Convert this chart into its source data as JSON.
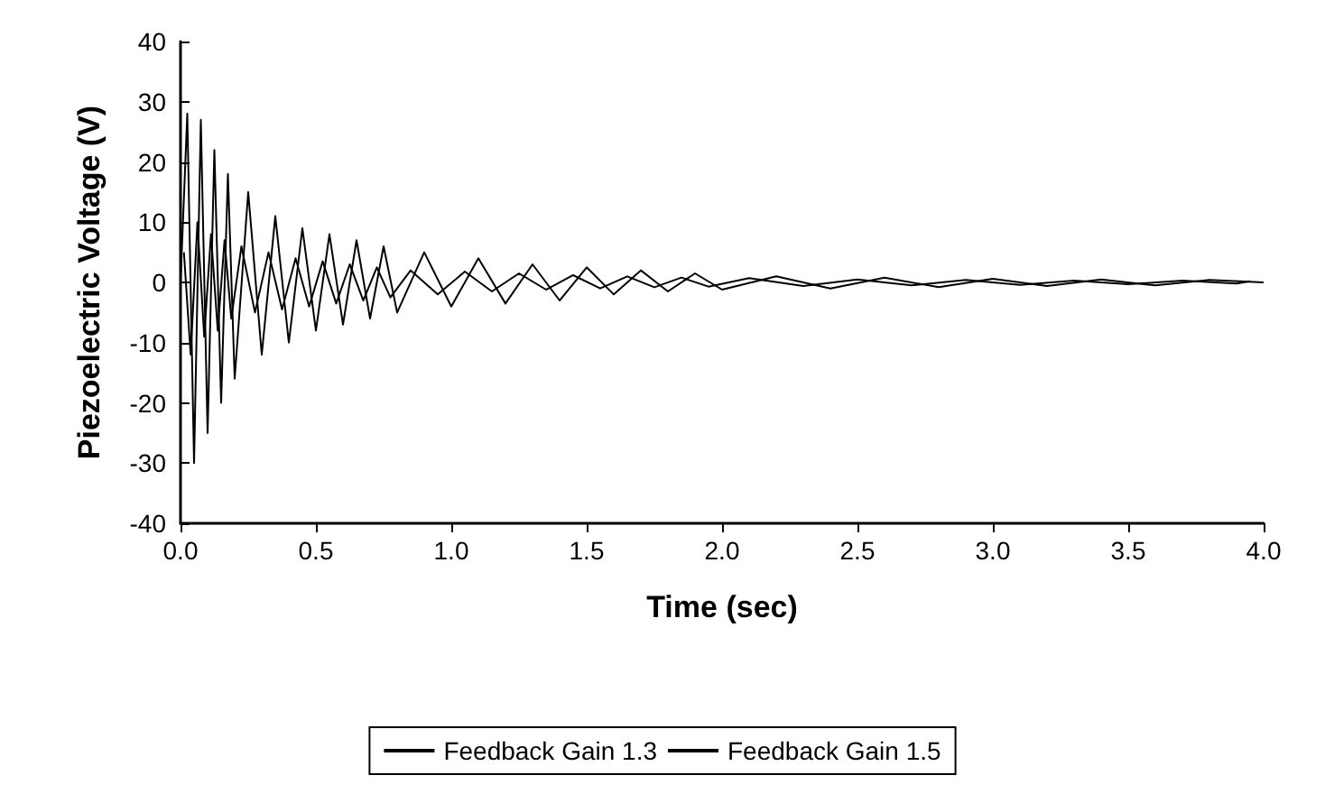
{
  "chart_data": {
    "type": "line",
    "xlabel": "Time (sec)",
    "ylabel": "Piezoelectric Voltage (V)",
    "xlim": [
      0,
      4
    ],
    "xticks": [
      {
        "value": 0,
        "label": "0.0"
      },
      {
        "value": 0.5,
        "label": "0.5"
      },
      {
        "value": 1,
        "label": "1.0"
      },
      {
        "value": 1.5,
        "label": "1.5"
      },
      {
        "value": 2,
        "label": "2.0"
      },
      {
        "value": 2.5,
        "label": "2.5"
      },
      {
        "value": 3,
        "label": "3.0"
      },
      {
        "value": 3.5,
        "label": "3.5"
      },
      {
        "value": 4,
        "label": "4.0"
      }
    ],
    "ylim": [
      -40,
      40
    ],
    "yticks": [
      -40,
      -30,
      -20,
      -10,
      0,
      10,
      20,
      30,
      40
    ],
    "grid": false,
    "legend": "bottom",
    "marker": "none",
    "line_style": "solid",
    "series": [
      {
        "name": "Feedback Gain 1.3",
        "color": "#000000",
        "x": [
          0,
          0.025,
          0.05,
          0.075,
          0.1,
          0.125,
          0.15,
          0.175,
          0.2,
          0.25,
          0.3,
          0.35,
          0.4,
          0.45,
          0.5,
          0.55,
          0.6,
          0.65,
          0.7,
          0.75,
          0.8,
          0.9,
          1.0,
          1.1,
          1.2,
          1.3,
          1.4,
          1.5,
          1.6,
          1.7,
          1.8,
          1.9,
          2.0,
          2.2,
          2.4,
          2.6,
          2.8,
          3.0,
          3.2,
          3.4,
          3.6,
          3.8,
          4.0
        ],
        "values": [
          0,
          28,
          -30,
          27,
          -25,
          22,
          -20,
          18,
          -16,
          15,
          -12,
          11,
          -10,
          9,
          -8,
          8,
          -7,
          7,
          -6,
          6,
          -5,
          5,
          -4,
          4,
          -3.5,
          3,
          -3,
          2.5,
          -2,
          2,
          -1.5,
          1.5,
          -1.2,
          1,
          -1,
          0.8,
          -0.8,
          0.6,
          -0.6,
          0.5,
          -0.5,
          0.4,
          0
        ]
      },
      {
        "name": "Feedback Gain 1.5",
        "color": "#000000",
        "x": [
          0.0125,
          0.0375,
          0.0625,
          0.0875,
          0.1125,
          0.1375,
          0.1625,
          0.1875,
          0.225,
          0.275,
          0.325,
          0.375,
          0.425,
          0.475,
          0.525,
          0.575,
          0.625,
          0.675,
          0.725,
          0.775,
          0.85,
          0.95,
          1.05,
          1.15,
          1.25,
          1.35,
          1.45,
          1.55,
          1.65,
          1.75,
          1.85,
          1.95,
          2.1,
          2.3,
          2.5,
          2.7,
          2.9,
          3.1,
          3.3,
          3.5,
          3.7,
          3.9,
          3.95
        ],
        "values": [
          5,
          -12,
          10,
          -9,
          8,
          -8,
          7,
          -6,
          6,
          -5,
          5,
          -4.5,
          4,
          -4,
          3.5,
          -3.5,
          3,
          -3,
          2.5,
          -2.5,
          2,
          -2,
          1.8,
          -1.5,
          1.5,
          -1.2,
          1.2,
          -1,
          1,
          -0.8,
          0.8,
          -0.7,
          0.7,
          -0.6,
          0.5,
          -0.5,
          0.4,
          -0.4,
          0.3,
          -0.3,
          0.3,
          -0.2,
          0.2
        ]
      }
    ]
  }
}
